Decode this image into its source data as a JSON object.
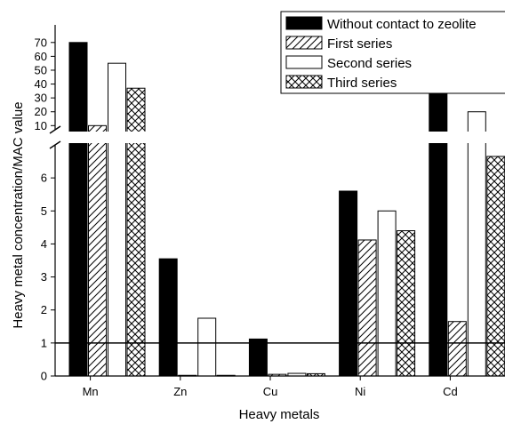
{
  "chart_data": {
    "type": "bar",
    "xlabel": "Heavy metals",
    "ylabel": "Heavy metal concentration/MAC value",
    "categories": [
      "Mn",
      "Zn",
      "Cu",
      "Ni",
      "Cd"
    ],
    "series": [
      {
        "name": "Without contact to zeolite",
        "values": [
          70,
          3.55,
          1.12,
          5.6,
          37
        ],
        "pattern": "solid"
      },
      {
        "name": "First series",
        "values": [
          10,
          0.02,
          0.05,
          4.12,
          1.65
        ],
        "pattern": "diagonal-hatch"
      },
      {
        "name": "Second series",
        "values": [
          55,
          1.75,
          0.08,
          5.0,
          20
        ],
        "pattern": "empty"
      },
      {
        "name": "Third series",
        "values": [
          37,
          0.02,
          0.07,
          4.4,
          6.65
        ],
        "pattern": "cross-hatch"
      }
    ],
    "broken_axis": {
      "lower_range": [
        0,
        7
      ],
      "lower_ticks": [
        0,
        1,
        2,
        3,
        4,
        5,
        6
      ],
      "upper_range": [
        7,
        75
      ],
      "upper_ticks": [
        10,
        20,
        30,
        40,
        50,
        60,
        70
      ]
    },
    "reference_line": 1,
    "legend_position": "top-right",
    "grid": false
  }
}
